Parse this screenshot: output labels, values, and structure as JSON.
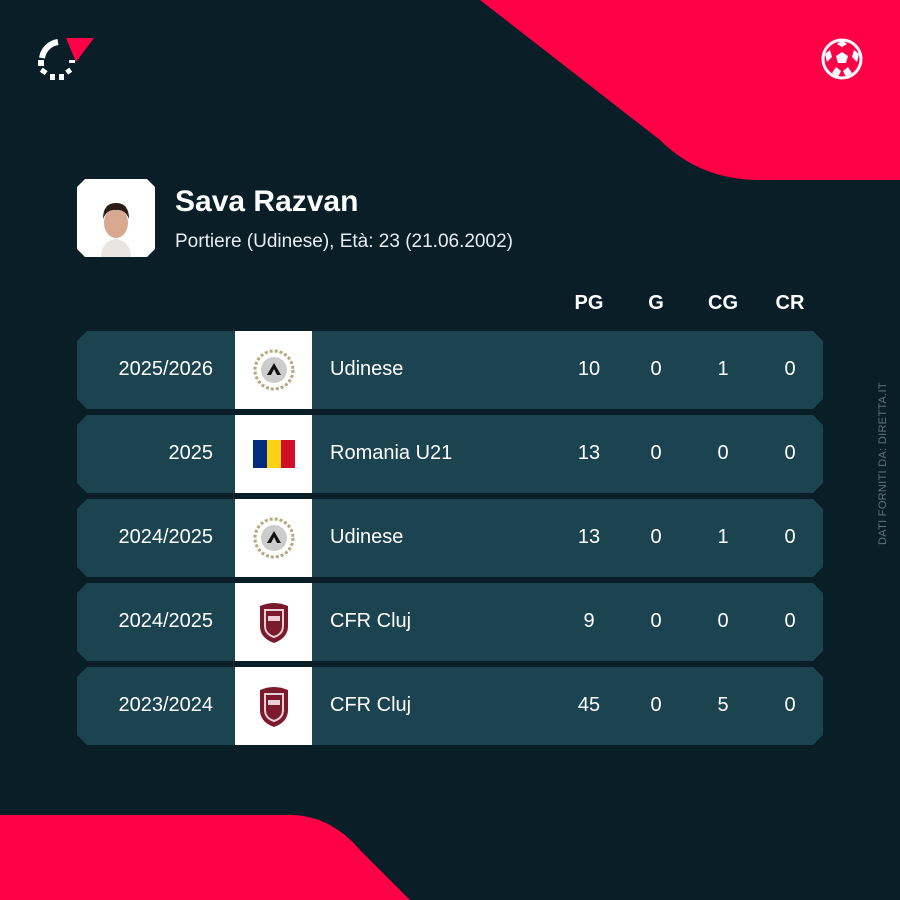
{
  "colors": {
    "background": "#091e27",
    "accent": "#ff0046",
    "row": "#1b4350"
  },
  "icons": {
    "brand": "flashscore-logo-icon",
    "sport": "football-icon"
  },
  "player": {
    "name": "Sava Razvan",
    "subtitle": "Portiere (Udinese), Età: 23 (21.06.2002)"
  },
  "columns": [
    "PG",
    "G",
    "CG",
    "CR"
  ],
  "rows": [
    {
      "season": "2025/2026",
      "team": "Udinese",
      "logo": "udinese-crest",
      "values": [
        "10",
        "0",
        "1",
        "0"
      ]
    },
    {
      "season": "2025",
      "team": "Romania U21",
      "logo": "romania-flag",
      "values": [
        "13",
        "0",
        "0",
        "0"
      ]
    },
    {
      "season": "2024/2025",
      "team": "Udinese",
      "logo": "udinese-crest",
      "values": [
        "13",
        "0",
        "1",
        "0"
      ]
    },
    {
      "season": "2024/2025",
      "team": "CFR Cluj",
      "logo": "cfr-cluj-crest",
      "values": [
        "9",
        "0",
        "0",
        "0"
      ]
    },
    {
      "season": "2023/2024",
      "team": "CFR Cluj",
      "logo": "cfr-cluj-crest",
      "values": [
        "45",
        "0",
        "5",
        "0"
      ]
    }
  ],
  "credit": "DATI FORNITI DA: DIRETTA.IT"
}
